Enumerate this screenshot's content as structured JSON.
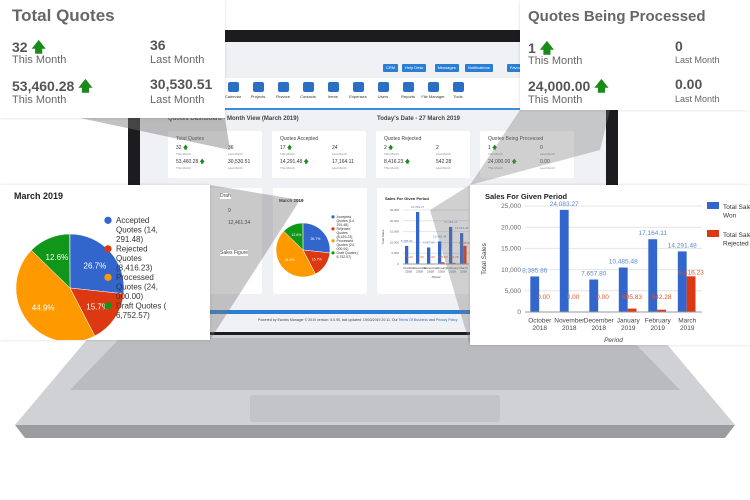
{
  "nav_buttons": [
    "CRM",
    "Help Desk",
    "Messages",
    "Notifications",
    "Favourites"
  ],
  "menu_items": [
    "Calendar",
    "Projects",
    "Finance",
    "Contacts",
    "Items",
    "Expenses",
    "Users",
    "Reports",
    "File Manager",
    "Tools"
  ],
  "dashboard": {
    "title": "Quotes Dashboard - Month View (March 2019)",
    "date": "Today's Date - 27 March 2019",
    "draft_label": "Draft",
    "sales_figure_label": "Sales Figure",
    "draft_last": "9",
    "draft_last_value": "12,461.34"
  },
  "cards": [
    {
      "title": "Total Quotes",
      "count": "32",
      "count_last": "36",
      "value": "53,460.28",
      "value_last": "30,530.51"
    },
    {
      "title": "Quotes Accepted",
      "count": "17",
      "count_last": "24",
      "value": "14,291.48",
      "value_last": "17,164.11"
    },
    {
      "title": "Quotes Rejected",
      "count": "2",
      "count_last": "2",
      "value": "8,416.23",
      "value_last": "542.28"
    },
    {
      "title": "Quotes Being Processed",
      "count": "1",
      "count_last": "0",
      "value": "24,000.00",
      "value_last": "0.00"
    }
  ],
  "labels": {
    "this_month": "This Month",
    "last_month": "Last Month",
    "up_arrow": "🡅"
  },
  "footer": {
    "text": "Powered by Eworks Manager © 2019 version: 5.0.95, last updated: 19/03/2019 20:11. Our ",
    "terms": "Terms Of Business",
    "and": " and ",
    "privacy": "Privacy Policy"
  },
  "callout_total": {
    "title": "Total Quotes",
    "count": "32",
    "count_last": "36",
    "value": "53,460.28",
    "value_last": "30,530.51"
  },
  "callout_processed": {
    "title": "Quotes Being Processed",
    "count": "1",
    "count_last": "0",
    "value": "24,000.00",
    "value_last": "0.00"
  },
  "chart_data": [
    {
      "type": "pie",
      "title": "March 2019",
      "slices": [
        {
          "label": "Accepted Quotes (14, 291.48)",
          "value": 26.7,
          "color": "#3366cc"
        },
        {
          "label": "Rejected Quotes (8,416.23)",
          "value": 15.7,
          "color": "#dc3912"
        },
        {
          "label": "Processed Quotes (24, 000.00)",
          "value": 44.9,
          "color": "#ff9900"
        },
        {
          "label": "Draft Quotes ( 6,752.57)",
          "value": 12.6,
          "color": "#109618"
        }
      ]
    },
    {
      "type": "bar",
      "title": "Sales For Given Period",
      "xlabel": "Period",
      "ylabel": "Total Sales",
      "ylim": [
        0,
        25000
      ],
      "yticks": [
        "0",
        "5,000",
        "10,000",
        "15,000",
        "20,000",
        "25,000"
      ],
      "categories": [
        "October 2018",
        "November 2018",
        "December 2018",
        "January 2019",
        "February 2019",
        "March 2019"
      ],
      "series": [
        {
          "name": "Total Sales Won",
          "color": "#3366cc",
          "values": [
            8385.86,
            24083.27,
            7657.8,
            10485.48,
            17164.11,
            14291.48
          ],
          "labels": [
            "8,385.86",
            "24,083.27",
            "7,657.80",
            "10,485.48",
            "17,164.11",
            "14,291.48"
          ]
        },
        {
          "name": "Total Sales Rejected",
          "color": "#dc3912",
          "values": [
            0,
            0,
            0,
            805.83,
            542.28,
            8416.23
          ],
          "labels": [
            "0.00",
            "0.00",
            "0.00",
            "805.83",
            "542.28",
            "8,416.23"
          ]
        }
      ]
    }
  ]
}
